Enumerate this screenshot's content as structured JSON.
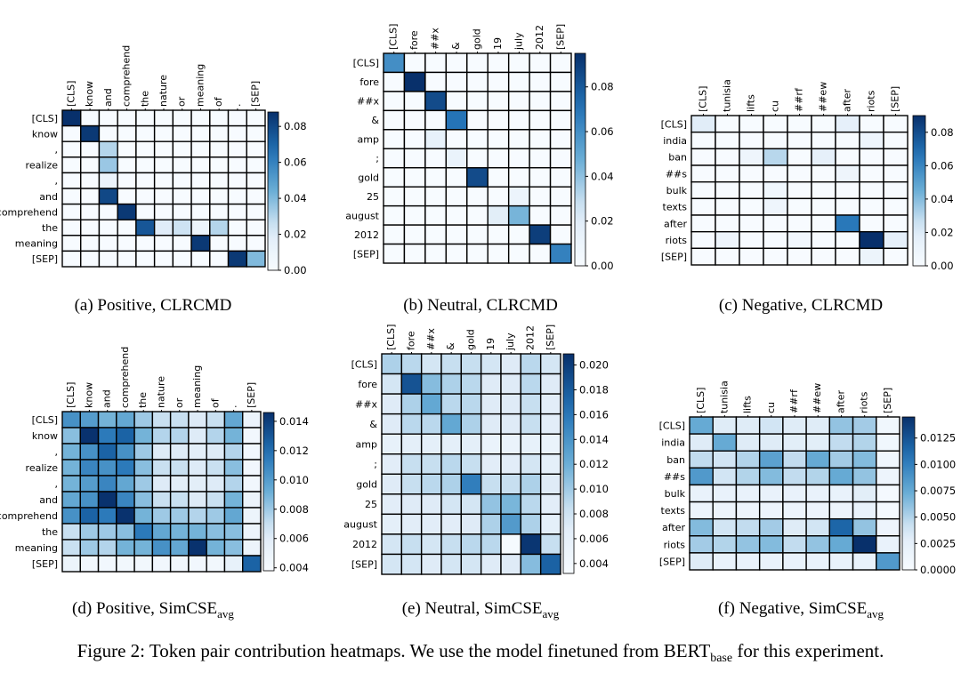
{
  "figure_caption": {
    "lead": "Figure 2: Token pair contribution heatmaps. We use the model finetuned from BERT",
    "sub": "base",
    "tail": " for this experiment."
  },
  "colors": {
    "low": "#f7fbff",
    "mid": "#6baed6",
    "high": "#08306b",
    "grid": "#000000"
  },
  "chart_data": [
    {
      "type": "heatmap",
      "caption": "(a) Positive, CLRCMD",
      "caption_main": "(a) Positive, CLRCMD",
      "caption_sub": "",
      "x_labels": [
        "[CLS]",
        "know",
        "and",
        "comprehend",
        "the",
        "nature",
        "or",
        "meaning",
        "of",
        ".",
        "[SEP]"
      ],
      "y_labels": [
        "[CLS]",
        "know",
        ",",
        "realize",
        ",",
        "and",
        "comprehend",
        "the",
        "meaning",
        "[SEP]"
      ],
      "colorbar_ticks": [
        "0.00",
        "0.02",
        "0.04",
        "0.06",
        "0.08"
      ],
      "colorbar_range": [
        0,
        0.088
      ],
      "values": [
        [
          0.088,
          0,
          0,
          0,
          0,
          0,
          0,
          0,
          0,
          0,
          0
        ],
        [
          0,
          0.085,
          0,
          0,
          0,
          0,
          0,
          0,
          0,
          0,
          0
        ],
        [
          0,
          0,
          0.03,
          0,
          0,
          0,
          0,
          0,
          0,
          0,
          0
        ],
        [
          0,
          0,
          0.035,
          0,
          0,
          0,
          0,
          0,
          0,
          0,
          0
        ],
        [
          0,
          0,
          0.01,
          0,
          0,
          0,
          0,
          0,
          0,
          0,
          0
        ],
        [
          0,
          0,
          0.08,
          0,
          0,
          0,
          0,
          0,
          0,
          0,
          0
        ],
        [
          0,
          0,
          0,
          0.085,
          0,
          0,
          0,
          0,
          0,
          0,
          0
        ],
        [
          0,
          0,
          0,
          0,
          0.075,
          0.02,
          0.025,
          0.01,
          0.03,
          0,
          0
        ],
        [
          0,
          0,
          0,
          0,
          0,
          0,
          0,
          0.085,
          0,
          0,
          0
        ],
        [
          0,
          0,
          0,
          0,
          0,
          0,
          0,
          0,
          0,
          0.085,
          0.04
        ]
      ]
    },
    {
      "type": "heatmap",
      "caption": "(b) Neutral, CLRCMD",
      "caption_main": "(b) Neutral, CLRCMD",
      "caption_sub": "",
      "x_labels": [
        "[CLS]",
        "fore",
        "##x",
        "&",
        "gold",
        "19",
        "july",
        "2012",
        "[SEP]"
      ],
      "y_labels": [
        "[CLS]",
        "fore",
        "##x",
        "&",
        "amp",
        ";",
        "gold",
        "25",
        "august",
        "2012",
        "[SEP]"
      ],
      "colorbar_ticks": [
        "0.00",
        "0.02",
        "0.04",
        "0.06",
        "0.08"
      ],
      "colorbar_range": [
        0,
        0.095
      ],
      "values": [
        [
          0.06,
          0,
          0,
          0,
          0,
          0,
          0,
          0,
          0
        ],
        [
          0,
          0.095,
          0,
          0,
          0,
          0,
          0,
          0,
          0
        ],
        [
          0,
          0,
          0.085,
          0,
          0,
          0,
          0,
          0,
          0
        ],
        [
          0,
          0,
          0,
          0.07,
          0,
          0,
          0,
          0,
          0
        ],
        [
          0,
          0,
          0.015,
          0,
          0,
          0,
          0,
          0,
          0
        ],
        [
          0,
          0,
          0,
          0.012,
          0,
          0,
          0,
          0,
          0
        ],
        [
          0,
          0,
          0,
          0,
          0.085,
          0,
          0,
          0,
          0
        ],
        [
          0,
          0,
          0,
          0,
          0,
          0,
          0.01,
          0,
          0
        ],
        [
          0,
          0,
          0,
          0,
          0,
          0.02,
          0.045,
          0,
          0
        ],
        [
          0,
          0,
          0,
          0,
          0,
          0,
          0,
          0.09,
          0
        ],
        [
          0,
          0,
          0,
          0,
          0,
          0,
          0,
          0,
          0.065
        ]
      ]
    },
    {
      "type": "heatmap",
      "caption": "(c) Negative, CLRCMD",
      "caption_main": "(c) Negative, CLRCMD",
      "caption_sub": "",
      "x_labels": [
        "[CLS]",
        "tunisia",
        "lifts",
        "cu",
        "##rf",
        "##ew",
        "after",
        "riots",
        "[SEP]"
      ],
      "y_labels": [
        "[CLS]",
        "india",
        "ban",
        "##s",
        "bulk",
        "texts",
        "after",
        "riots",
        "[SEP]"
      ],
      "colorbar_ticks": [
        "0.00",
        "0.02",
        "0.04",
        "0.06",
        "0.08"
      ],
      "colorbar_range": [
        0,
        0.09
      ],
      "values": [
        [
          0.02,
          0,
          0,
          0,
          0,
          0,
          0.015,
          0,
          0
        ],
        [
          0,
          0,
          0,
          0,
          0,
          0,
          0,
          0.008,
          0
        ],
        [
          0,
          0,
          0.008,
          0.03,
          0,
          0.015,
          0,
          0,
          0
        ],
        [
          0,
          0,
          0,
          0,
          0,
          0,
          0.008,
          0,
          0
        ],
        [
          0,
          0,
          0,
          0.006,
          0,
          0,
          0,
          0,
          0
        ],
        [
          0,
          0,
          0,
          0.008,
          0,
          0,
          0,
          0,
          0
        ],
        [
          0,
          0,
          0,
          0,
          0,
          0,
          0.065,
          0,
          0
        ],
        [
          0,
          0.008,
          0,
          0,
          0.005,
          0,
          0,
          0.09,
          0.015
        ],
        [
          0,
          0,
          0,
          0,
          0,
          0,
          0,
          0.01,
          0
        ]
      ]
    },
    {
      "type": "heatmap",
      "caption": "(d) Positive, SimCSEavg",
      "caption_main": "(d) Positive, SimCSE",
      "caption_sub": "avg",
      "x_labels": [
        "[CLS]",
        "know",
        "and",
        "comprehend",
        "the",
        "nature",
        "or",
        "meaning",
        "of",
        ".",
        "[SEP]"
      ],
      "y_labels": [
        "[CLS]",
        "know",
        ",",
        "realize",
        ",",
        "and",
        "comprehend",
        "the",
        "meaning",
        "[SEP]"
      ],
      "colorbar_ticks": [
        "0.004",
        "0.006",
        "0.008",
        "0.010",
        "0.012",
        "0.014"
      ],
      "colorbar_range": [
        0.0038,
        0.0146
      ],
      "values": [
        [
          0.0105,
          0.01,
          0.009,
          0.0095,
          0.008,
          0.007,
          0.007,
          0.0065,
          0.007,
          0.0095,
          0.005
        ],
        [
          0.0085,
          0.0145,
          0.0115,
          0.0125,
          0.009,
          0.0075,
          0.0075,
          0.0065,
          0.0075,
          0.009,
          0.0045
        ],
        [
          0.009,
          0.0105,
          0.0125,
          0.0105,
          0.008,
          0.0065,
          0.0065,
          0.006,
          0.0065,
          0.0075,
          0.0045
        ],
        [
          0.009,
          0.011,
          0.0105,
          0.0115,
          0.0085,
          0.007,
          0.007,
          0.0065,
          0.007,
          0.0085,
          0.0045
        ],
        [
          0.009,
          0.01,
          0.011,
          0.0095,
          0.008,
          0.0065,
          0.006,
          0.006,
          0.0065,
          0.0075,
          0.0045
        ],
        [
          0.0095,
          0.0105,
          0.0145,
          0.011,
          0.0085,
          0.007,
          0.007,
          0.0065,
          0.007,
          0.009,
          0.005
        ],
        [
          0.0105,
          0.0125,
          0.0115,
          0.0145,
          0.009,
          0.008,
          0.008,
          0.0075,
          0.008,
          0.0095,
          0.005
        ],
        [
          0.007,
          0.008,
          0.008,
          0.0085,
          0.0115,
          0.0095,
          0.009,
          0.009,
          0.0085,
          0.0085,
          0.005
        ],
        [
          0.007,
          0.008,
          0.0075,
          0.009,
          0.009,
          0.0105,
          0.0095,
          0.0145,
          0.009,
          0.0085,
          0.005
        ],
        [
          0.005,
          0.0045,
          0.0045,
          0.0045,
          0.0045,
          0.0045,
          0.0045,
          0.0045,
          0.0045,
          0.0055,
          0.0125
        ]
      ]
    },
    {
      "type": "heatmap",
      "caption": "(e) Neutral, SimCSEavg",
      "caption_main": "(e) Neutral, SimCSE",
      "caption_sub": "avg",
      "x_labels": [
        "[CLS]",
        "fore",
        "##x",
        "&",
        "gold",
        "19",
        "july",
        "2012",
        "[SEP]"
      ],
      "y_labels": [
        "[CLS]",
        "fore",
        "##x",
        "&",
        "amp",
        ";",
        "gold",
        "25",
        "august",
        "2012",
        "[SEP]"
      ],
      "colorbar_ticks": [
        "0.004",
        "0.006",
        "0.008",
        "0.010",
        "0.012",
        "0.014",
        "0.016",
        "0.018",
        "0.020"
      ],
      "colorbar_range": [
        0.0032,
        0.0209
      ],
      "values": [
        [
          0.0095,
          0.009,
          0.008,
          0.0085,
          0.0085,
          0.008,
          0.0075,
          0.009,
          0.008
        ],
        [
          0.008,
          0.0185,
          0.011,
          0.0095,
          0.009,
          0.0075,
          0.0075,
          0.009,
          0.0075
        ],
        [
          0.0075,
          0.0095,
          0.0125,
          0.009,
          0.009,
          0.0075,
          0.0075,
          0.0085,
          0.007
        ],
        [
          0.0075,
          0.009,
          0.009,
          0.0125,
          0.0095,
          0.0075,
          0.0075,
          0.0085,
          0.007
        ],
        [
          0.006,
          0.0065,
          0.0065,
          0.0065,
          0.0065,
          0.0055,
          0.0055,
          0.006,
          0.0055
        ],
        [
          0.007,
          0.0085,
          0.0085,
          0.009,
          0.0085,
          0.007,
          0.007,
          0.008,
          0.0065
        ],
        [
          0.0075,
          0.0085,
          0.009,
          0.0095,
          0.0155,
          0.0085,
          0.0085,
          0.0095,
          0.0075
        ],
        [
          0.007,
          0.0075,
          0.0075,
          0.008,
          0.008,
          0.0105,
          0.0115,
          0.009,
          0.007
        ],
        [
          0.0065,
          0.007,
          0.007,
          0.007,
          0.0075,
          0.0095,
          0.0135,
          0.0095,
          0.0065
        ],
        [
          0.008,
          0.0085,
          0.008,
          0.0085,
          0.009,
          0.009,
          0.0035,
          0.0205,
          0.0085
        ],
        [
          0.008,
          0.008,
          0.0075,
          0.008,
          0.008,
          0.0075,
          0.0075,
          0.011,
          0.0175
        ]
      ]
    },
    {
      "type": "heatmap",
      "caption": "(f) Negative, SimCSEavg",
      "caption_main": "(f) Negative, SimCSE",
      "caption_sub": "avg",
      "x_labels": [
        "[CLS]",
        "tunisia",
        "lifts",
        "cu",
        "##rf",
        "##ew",
        "after",
        "riots",
        "[SEP]"
      ],
      "y_labels": [
        "[CLS]",
        "india",
        "ban",
        "##s",
        "bulk",
        "texts",
        "after",
        "riots",
        "[SEP]"
      ],
      "colorbar_ticks": [
        "0.0000",
        "0.0025",
        "0.0050",
        "0.0075",
        "0.0100",
        "0.0125"
      ],
      "colorbar_range": [
        0,
        0.0145
      ],
      "values": [
        [
          0.0075,
          0.0035,
          0.0035,
          0.004,
          0.0035,
          0.0035,
          0.006,
          0.0055,
          0.001
        ],
        [
          0.0035,
          0.0075,
          0.0035,
          0.0035,
          0.003,
          0.003,
          0.0045,
          0.005,
          0.001
        ],
        [
          0.0045,
          0.004,
          0.005,
          0.008,
          0.0045,
          0.0075,
          0.0055,
          0.0065,
          0.001
        ],
        [
          0.0085,
          0.004,
          0.005,
          0.0065,
          0.0045,
          0.005,
          0.0075,
          0.006,
          0.0015
        ],
        [
          0.002,
          0.002,
          0.002,
          0.002,
          0.002,
          0.002,
          0.002,
          0.003,
          0.0005
        ],
        [
          0.0015,
          0.0015,
          0.0015,
          0.0015,
          0.0015,
          0.0015,
          0.0015,
          0.002,
          0.0005
        ],
        [
          0.0065,
          0.004,
          0.0045,
          0.0055,
          0.0035,
          0.004,
          0.0115,
          0.006,
          0.0015
        ],
        [
          0.0055,
          0.005,
          0.006,
          0.0065,
          0.0045,
          0.006,
          0.0075,
          0.0145,
          0.002
        ],
        [
          0.0035,
          0.002,
          0.002,
          0.002,
          0.002,
          0.002,
          0.002,
          0.002,
          0.0085
        ]
      ]
    }
  ]
}
